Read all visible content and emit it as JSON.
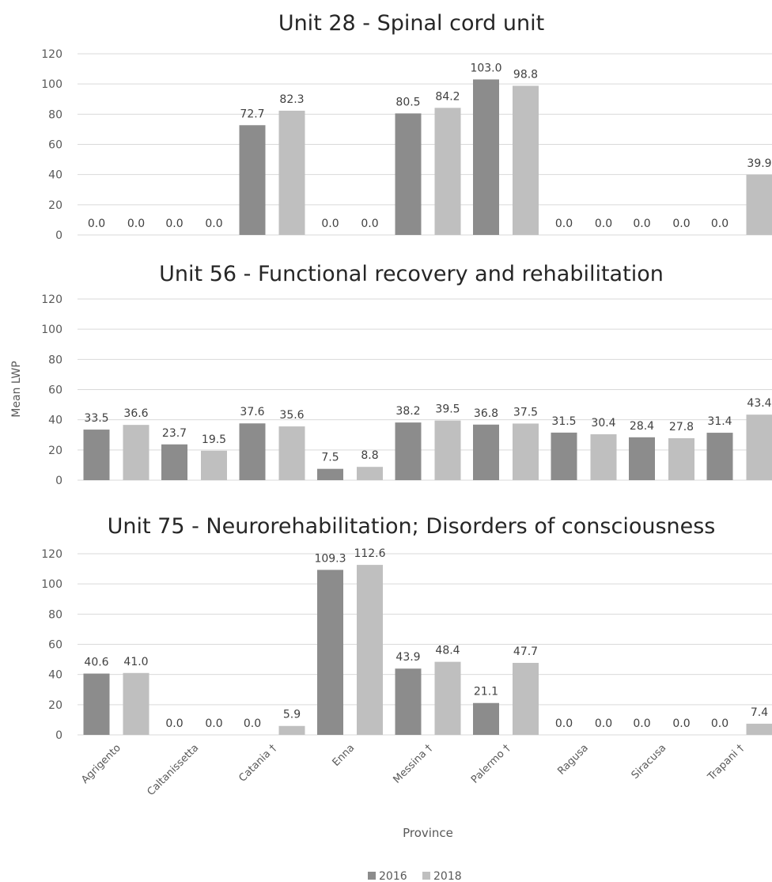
{
  "chart_data": {
    "type": "bar",
    "ylabel": "Mean LWP",
    "xlabel": "Province",
    "categories": [
      "Agrigento",
      "Caltanissetta",
      "Catania †",
      "Enna",
      "Messina †",
      "Palermo †",
      "Ragusa",
      "Siracusa",
      "Trapani †"
    ],
    "legend": {
      "position": "bottom",
      "entries": [
        "2016",
        "2018"
      ]
    },
    "colors": {
      "2016": "#8c8c8c",
      "2018": "#bfbfbf",
      "grid": "#d9d9d9"
    },
    "ylim": [
      0,
      120
    ],
    "yticks": [
      0,
      20,
      40,
      60,
      80,
      100,
      120
    ],
    "grid": true,
    "panels": [
      {
        "title": "Unit 28 - Spinal cord unit",
        "series": [
          {
            "name": "2016",
            "values": [
              0.0,
              0.0,
              72.7,
              0.0,
              80.5,
              103.0,
              0.0,
              0.0,
              0.0
            ]
          },
          {
            "name": "2018",
            "values": [
              0.0,
              0.0,
              82.3,
              0.0,
              84.2,
              98.8,
              0.0,
              0.0,
              39.9
            ]
          }
        ]
      },
      {
        "title": "Unit 56 - Functional recovery and rehabilitation",
        "series": [
          {
            "name": "2016",
            "values": [
              33.5,
              23.7,
              37.6,
              7.5,
              38.2,
              36.8,
              31.5,
              28.4,
              31.4
            ]
          },
          {
            "name": "2018",
            "values": [
              36.6,
              19.5,
              35.6,
              8.8,
              39.5,
              37.5,
              30.4,
              27.8,
              43.4
            ]
          }
        ]
      },
      {
        "title": "Unit 75 - Neurorehabilitation; Disorders of consciousness",
        "series": [
          {
            "name": "2016",
            "values": [
              40.6,
              0.0,
              0.0,
              109.3,
              43.9,
              21.1,
              0.0,
              0.0,
              0.0
            ]
          },
          {
            "name": "2018",
            "values": [
              41.0,
              0.0,
              5.9,
              112.6,
              48.4,
              47.7,
              0.0,
              0.0,
              7.4
            ]
          }
        ]
      }
    ]
  }
}
